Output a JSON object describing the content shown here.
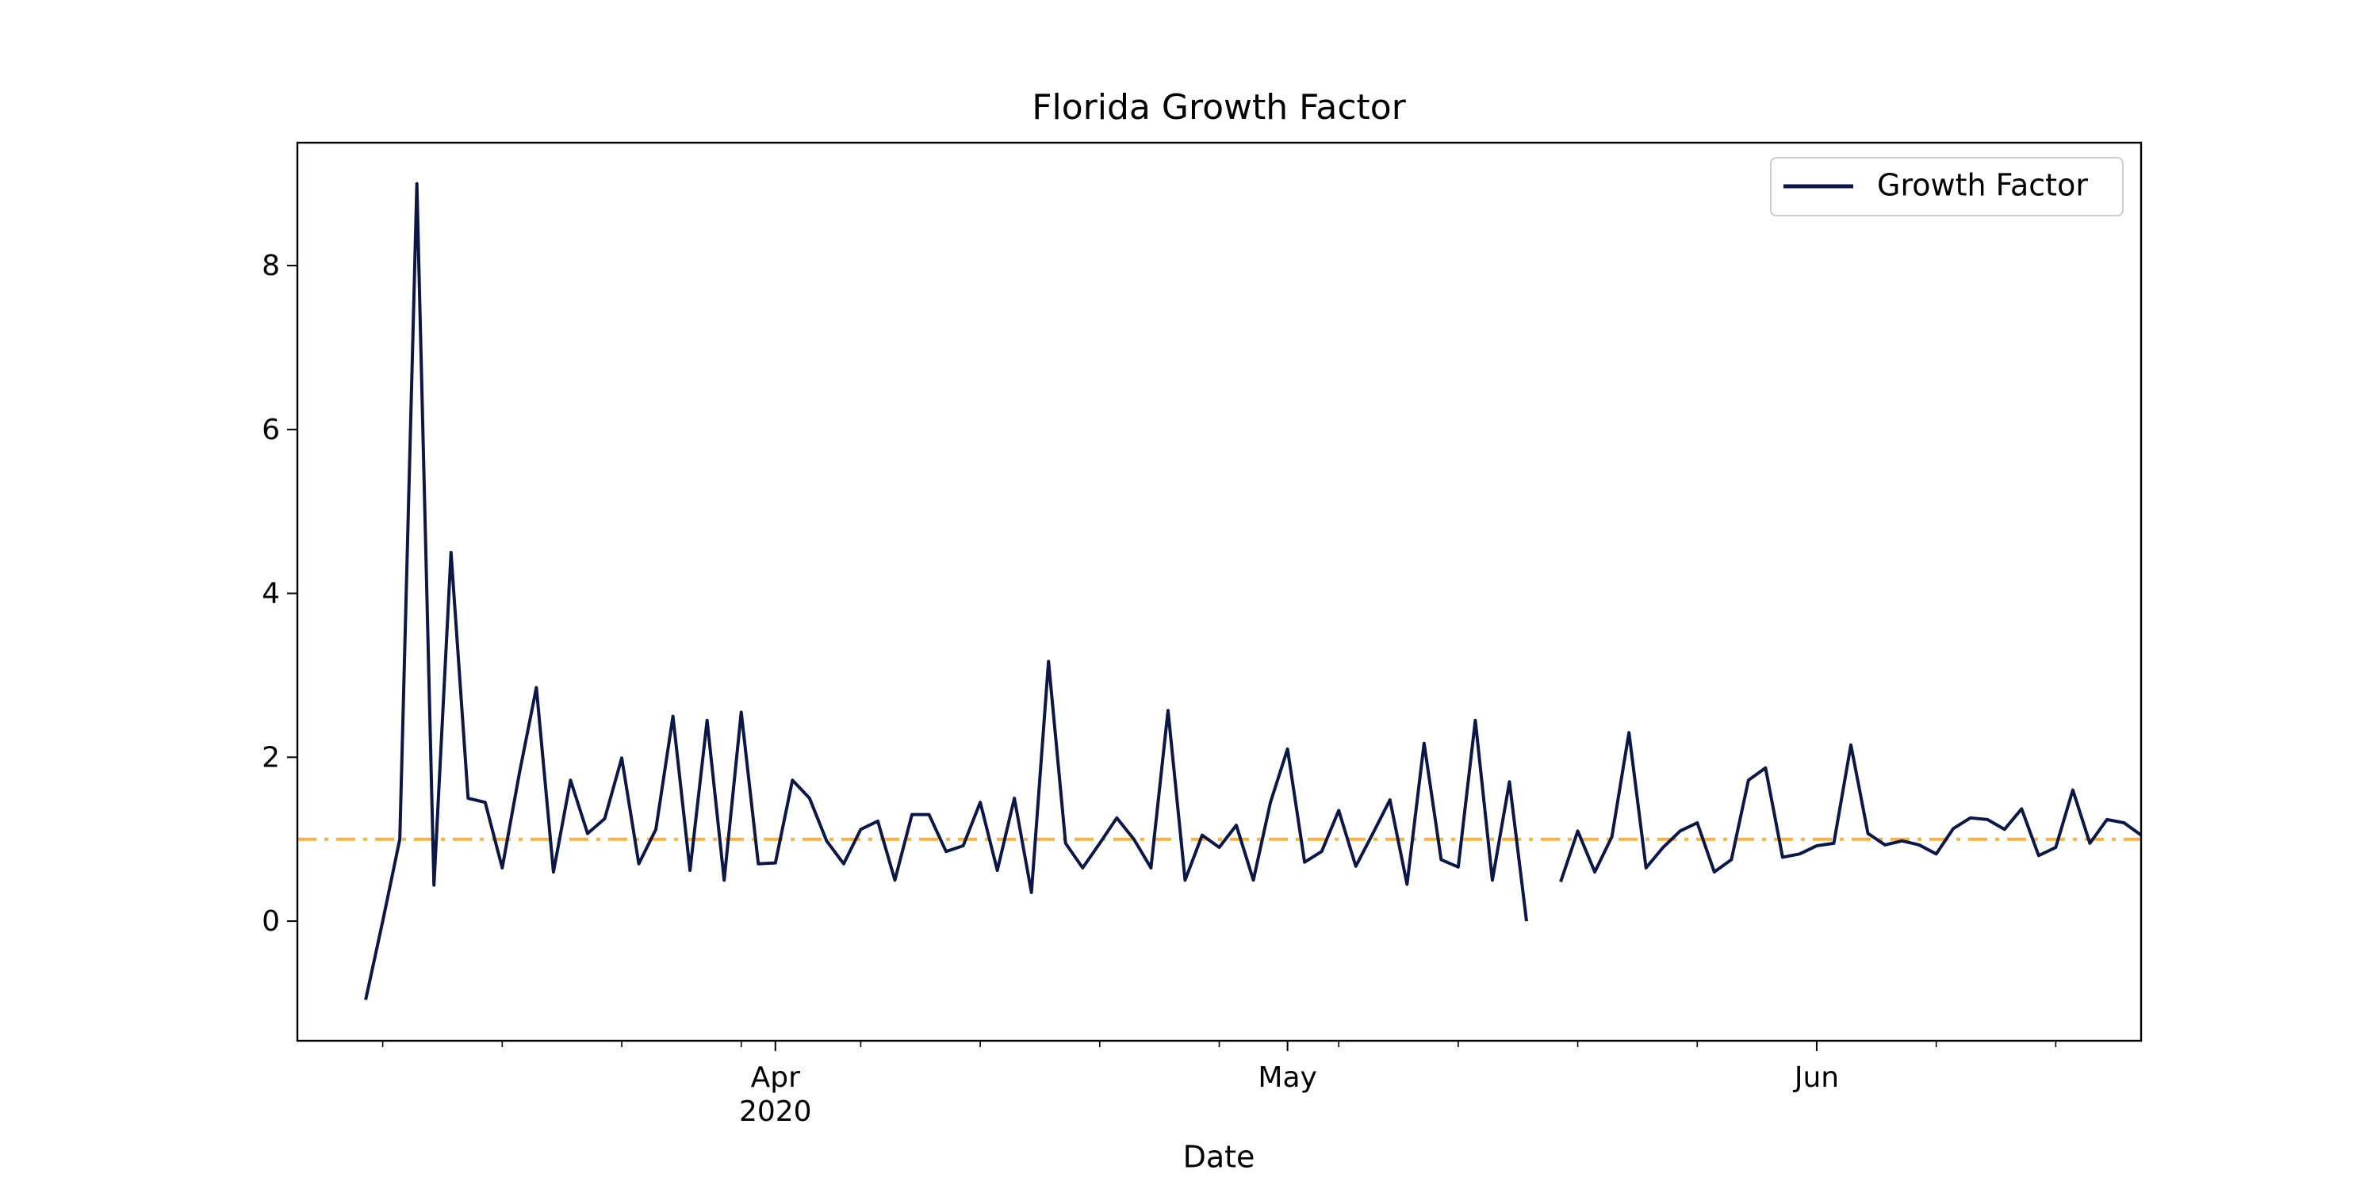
{
  "chart_data": {
    "type": "line",
    "title": "Florida Growth Factor",
    "xlabel": "Date",
    "x": [
      "2020-03-08",
      "2020-03-09",
      "2020-03-10",
      "2020-03-11",
      "2020-03-12",
      "2020-03-13",
      "2020-03-14",
      "2020-03-15",
      "2020-03-16",
      "2020-03-17",
      "2020-03-18",
      "2020-03-19",
      "2020-03-20",
      "2020-03-21",
      "2020-03-22",
      "2020-03-23",
      "2020-03-24",
      "2020-03-25",
      "2020-03-26",
      "2020-03-27",
      "2020-03-28",
      "2020-03-29",
      "2020-03-30",
      "2020-03-31",
      "2020-04-01",
      "2020-04-02",
      "2020-04-03",
      "2020-04-04",
      "2020-04-05",
      "2020-04-06",
      "2020-04-07",
      "2020-04-08",
      "2020-04-09",
      "2020-04-10",
      "2020-04-11",
      "2020-04-12",
      "2020-04-13",
      "2020-04-14",
      "2020-04-15",
      "2020-04-16",
      "2020-04-17",
      "2020-04-18",
      "2020-04-19",
      "2020-04-20",
      "2020-04-21",
      "2020-04-22",
      "2020-04-23",
      "2020-04-24",
      "2020-04-25",
      "2020-04-26",
      "2020-04-27",
      "2020-04-28",
      "2020-04-29",
      "2020-04-30",
      "2020-05-01",
      "2020-05-02",
      "2020-05-03",
      "2020-05-04",
      "2020-05-05",
      "2020-05-06",
      "2020-05-07",
      "2020-05-08",
      "2020-05-09",
      "2020-05-10",
      "2020-05-11",
      "2020-05-12",
      "2020-05-13",
      "2020-05-14",
      "2020-05-15",
      "2020-05-16",
      "2020-05-17",
      "2020-05-18",
      "2020-05-19",
      "2020-05-20",
      "2020-05-21",
      "2020-05-22",
      "2020-05-23",
      "2020-05-24",
      "2020-05-25",
      "2020-05-26",
      "2020-05-27",
      "2020-05-28",
      "2020-05-29",
      "2020-05-30",
      "2020-05-31",
      "2020-06-01",
      "2020-06-02",
      "2020-06-03",
      "2020-06-04",
      "2020-06-05",
      "2020-06-06",
      "2020-06-07",
      "2020-06-08",
      "2020-06-09",
      "2020-06-10",
      "2020-06-11",
      "2020-06-12",
      "2020-06-13",
      "2020-06-14",
      "2020-06-15",
      "2020-06-16",
      "2020-06-17",
      "2020-06-18",
      "2020-06-19",
      "2020-06-20"
    ],
    "series": [
      {
        "name": "Growth Factor",
        "color": "#0b1747",
        "values": [
          -0.96,
          0,
          1.0,
          9.0,
          0.44,
          4.5,
          1.5,
          1.45,
          0.65,
          1.8,
          2.85,
          0.6,
          1.72,
          1.07,
          1.25,
          1.99,
          0.7,
          1.12,
          2.5,
          0.62,
          2.45,
          0.5,
          2.55,
          0.7,
          0.71,
          1.72,
          1.5,
          0.98,
          0.7,
          1.12,
          1.22,
          0.5,
          1.3,
          1.3,
          0.85,
          0.92,
          1.45,
          0.62,
          1.5,
          0.35,
          3.17,
          0.95,
          0.65,
          0.95,
          1.26,
          1.0,
          0.65,
          2.57,
          0.5,
          1.05,
          0.9,
          1.17,
          0.5,
          1.45,
          2.1,
          0.72,
          0.85,
          1.35,
          0.67,
          1.07,
          1.48,
          0.45,
          2.17,
          0.75,
          0.66,
          2.45,
          0.5,
          1.7,
          0.0,
          null,
          0.48,
          1.1,
          0.6,
          1.03,
          2.3,
          0.65,
          0.9,
          1.1,
          1.2,
          0.6,
          0.75,
          1.72,
          1.87,
          0.78,
          0.82,
          0.92,
          0.95,
          2.15,
          1.07,
          0.93,
          0.98,
          0.93,
          0.82,
          1.13,
          1.26,
          1.24,
          1.12,
          1.37,
          0.8,
          0.9,
          1.6,
          0.95,
          1.24,
          1.2,
          1.05
        ]
      }
    ],
    "hline": {
      "value": 1,
      "color": "#fbb13c"
    },
    "xlim": [
      "2020-03-04",
      "2020-06-20"
    ],
    "xticks": [
      {
        "value": "2020-04-01",
        "label": "Apr",
        "sublabel": "2020"
      },
      {
        "value": "2020-05-01",
        "label": "May"
      },
      {
        "value": "2020-06-01",
        "label": "Jun"
      }
    ],
    "xminorticks": [
      "2020-03-09",
      "2020-03-16",
      "2020-03-23",
      "2020-03-30",
      "2020-04-06",
      "2020-04-13",
      "2020-04-20",
      "2020-04-27",
      "2020-05-04",
      "2020-05-11",
      "2020-05-18",
      "2020-05-25",
      "2020-06-08",
      "2020-06-15"
    ],
    "ylim": [
      -1.46,
      9.5
    ],
    "yticks": [
      0,
      2,
      4,
      6,
      8
    ],
    "legend": "upper right"
  }
}
